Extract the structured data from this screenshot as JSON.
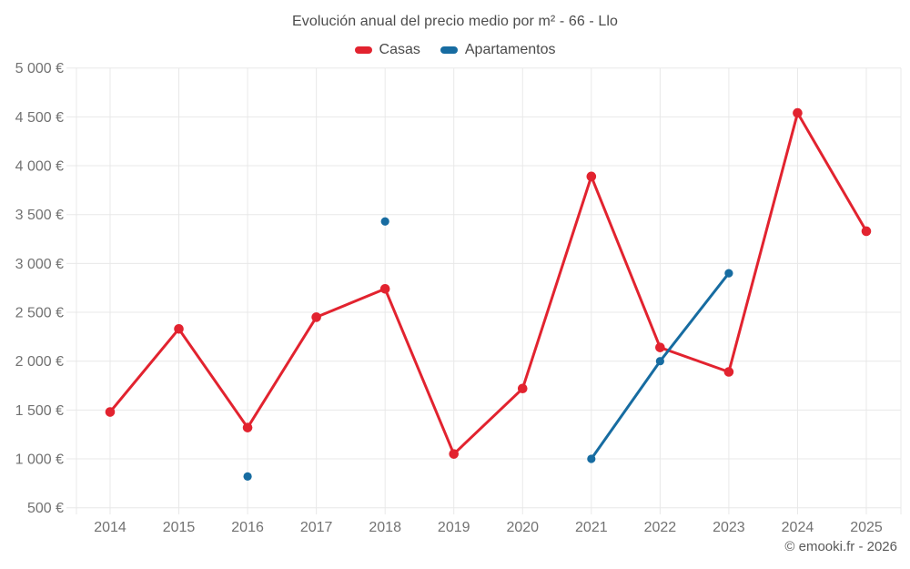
{
  "title": "Evolución anual del precio medio por m² - 66 - Llo",
  "legend": [
    {
      "label": "Casas",
      "color": "#e2232f"
    },
    {
      "label": "Apartamentos",
      "color": "#176ca1"
    }
  ],
  "copyright": "© emooki.fr - 2026",
  "colors": {
    "casas": "#e2232f",
    "apartamentos": "#176ca1",
    "gridline": "#e8e8e8",
    "axis_label": "#727272",
    "title_text": "#4c4c4c"
  },
  "chart_data": {
    "type": "line",
    "title": "Evolución anual del precio medio por m² - 66 - Llo",
    "xlabel": "",
    "ylabel": "",
    "x": [
      2014,
      2015,
      2016,
      2017,
      2018,
      2019,
      2020,
      2021,
      2022,
      2023,
      2024,
      2025
    ],
    "xtick_labels": [
      "2014",
      "2015",
      "2016",
      "2017",
      "2018",
      "2019",
      "2020",
      "2021",
      "2022",
      "2023",
      "2024",
      "2025"
    ],
    "series": [
      {
        "name": "Casas",
        "color": "#e2232f",
        "values": [
          1480,
          2330,
          1320,
          2450,
          2740,
          1050,
          1720,
          3890,
          2140,
          1890,
          4540,
          3330
        ]
      },
      {
        "name": "Apartamentos",
        "color": "#176ca1",
        "values": [
          null,
          null,
          820,
          null,
          3430,
          null,
          null,
          1000,
          2000,
          2900,
          null,
          null
        ]
      }
    ],
    "ylim": [
      500,
      5000
    ],
    "yticks": [
      {
        "value": 500,
        "label": "500 €"
      },
      {
        "value": 1000,
        "label": "1 000 €"
      },
      {
        "value": 1500,
        "label": "1 500 €"
      },
      {
        "value": 2000,
        "label": "2 000 €"
      },
      {
        "value": 2500,
        "label": "2 500 €"
      },
      {
        "value": 3000,
        "label": "3 000 €"
      },
      {
        "value": 3500,
        "label": "3 500 €"
      },
      {
        "value": 4000,
        "label": "4 000 €"
      },
      {
        "value": 4500,
        "label": "4 500 €"
      },
      {
        "value": 5000,
        "label": "5 000 €"
      }
    ],
    "grid": true,
    "legend_position": "top-center",
    "currency": "€"
  }
}
